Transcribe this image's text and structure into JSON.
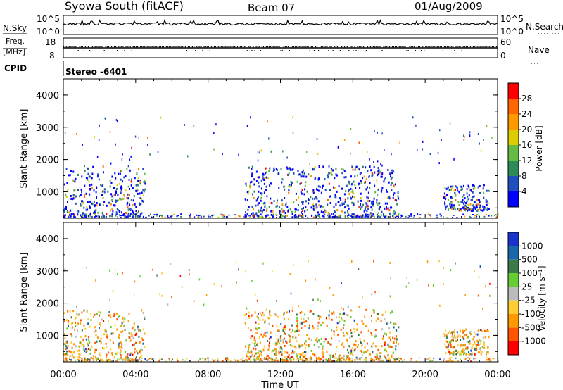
{
  "header": {
    "title": "Syowa South (fitACF)",
    "beam": "Beam 07",
    "date": "01/Aug/2009"
  },
  "summary": {
    "left_labels": {
      "nsky": "N.Sky",
      "freq_line1": "Freq.",
      "freq_line2": "[MHz]",
      "cpid": "CPID"
    },
    "right_labels": {
      "nsearch": "N.Search",
      "nave": "Nave"
    },
    "noise_ticks": [
      "10^5",
      "10^0"
    ],
    "freq_ticks": [
      "18",
      "8"
    ],
    "nave_ticks": [
      "60",
      "0"
    ],
    "cpid_text": "Stereo -6401"
  },
  "colors": {
    "power": [
      "#0000ff",
      "#1f4fbf",
      "#2e8b57",
      "#66bb44",
      "#ddcc00",
      "#ff9900",
      "#ff6600",
      "#ff0000"
    ],
    "velocity": [
      "#ff0000",
      "#ff5500",
      "#ff9900",
      "#ffcc33",
      "#bbbbbb",
      "#66cc33",
      "#3a7a4a",
      "#1a66aa",
      "#1a33cc"
    ]
  },
  "chart_data": [
    {
      "type": "heatmap",
      "name": "power",
      "ylabel": "Slant Range [km]",
      "xlabel": "",
      "xlim": [
        "00:00",
        "00:00"
      ],
      "ylim": [
        180,
        4500
      ],
      "y_ticks": [
        "4000",
        "3000",
        "2000",
        "1000"
      ],
      "colorbar": {
        "label": "Power [dB]",
        "ticks": [
          "28",
          "24",
          "20",
          "16",
          "12",
          "8",
          "4"
        ]
      },
      "echo_regions": [
        {
          "start": "00:00",
          "end": "04:30",
          "range_km": [
            200,
            1800
          ],
          "level": "4-16 dB"
        },
        {
          "start": "10:00",
          "end": "18:30",
          "range_km": [
            200,
            1800
          ],
          "level": "4-24 dB"
        },
        {
          "start": "21:00",
          "end": "23:30",
          "range_km": [
            400,
            1200
          ],
          "level": "4-16 dB"
        }
      ]
    },
    {
      "type": "heatmap",
      "name": "velocity",
      "ylabel": "Slant Range [km]",
      "xlabel": "Time UT",
      "x_ticks": [
        "00:00",
        "04:00",
        "08:00",
        "12:00",
        "16:00",
        "20:00",
        "00:00"
      ],
      "ylim": [
        180,
        4500
      ],
      "y_ticks": [
        "4000",
        "3000",
        "2000",
        "1000"
      ],
      "colorbar": {
        "label": "Velocity [m s⁻¹]",
        "ticks": [
          "1000",
          "500",
          "100",
          "25",
          "-25",
          "-100",
          "-500",
          "-1000"
        ]
      },
      "echo_regions": [
        {
          "start": "00:00",
          "end": "04:30",
          "range_km": [
            200,
            1800
          ],
          "level": "-500 to 100 m/s"
        },
        {
          "start": "10:00",
          "end": "18:30",
          "range_km": [
            200,
            1800
          ],
          "level": "-500 to 25 m/s"
        },
        {
          "start": "21:00",
          "end": "23:30",
          "range_km": [
            400,
            1200
          ],
          "level": "-500 to 100 m/s"
        }
      ]
    }
  ]
}
